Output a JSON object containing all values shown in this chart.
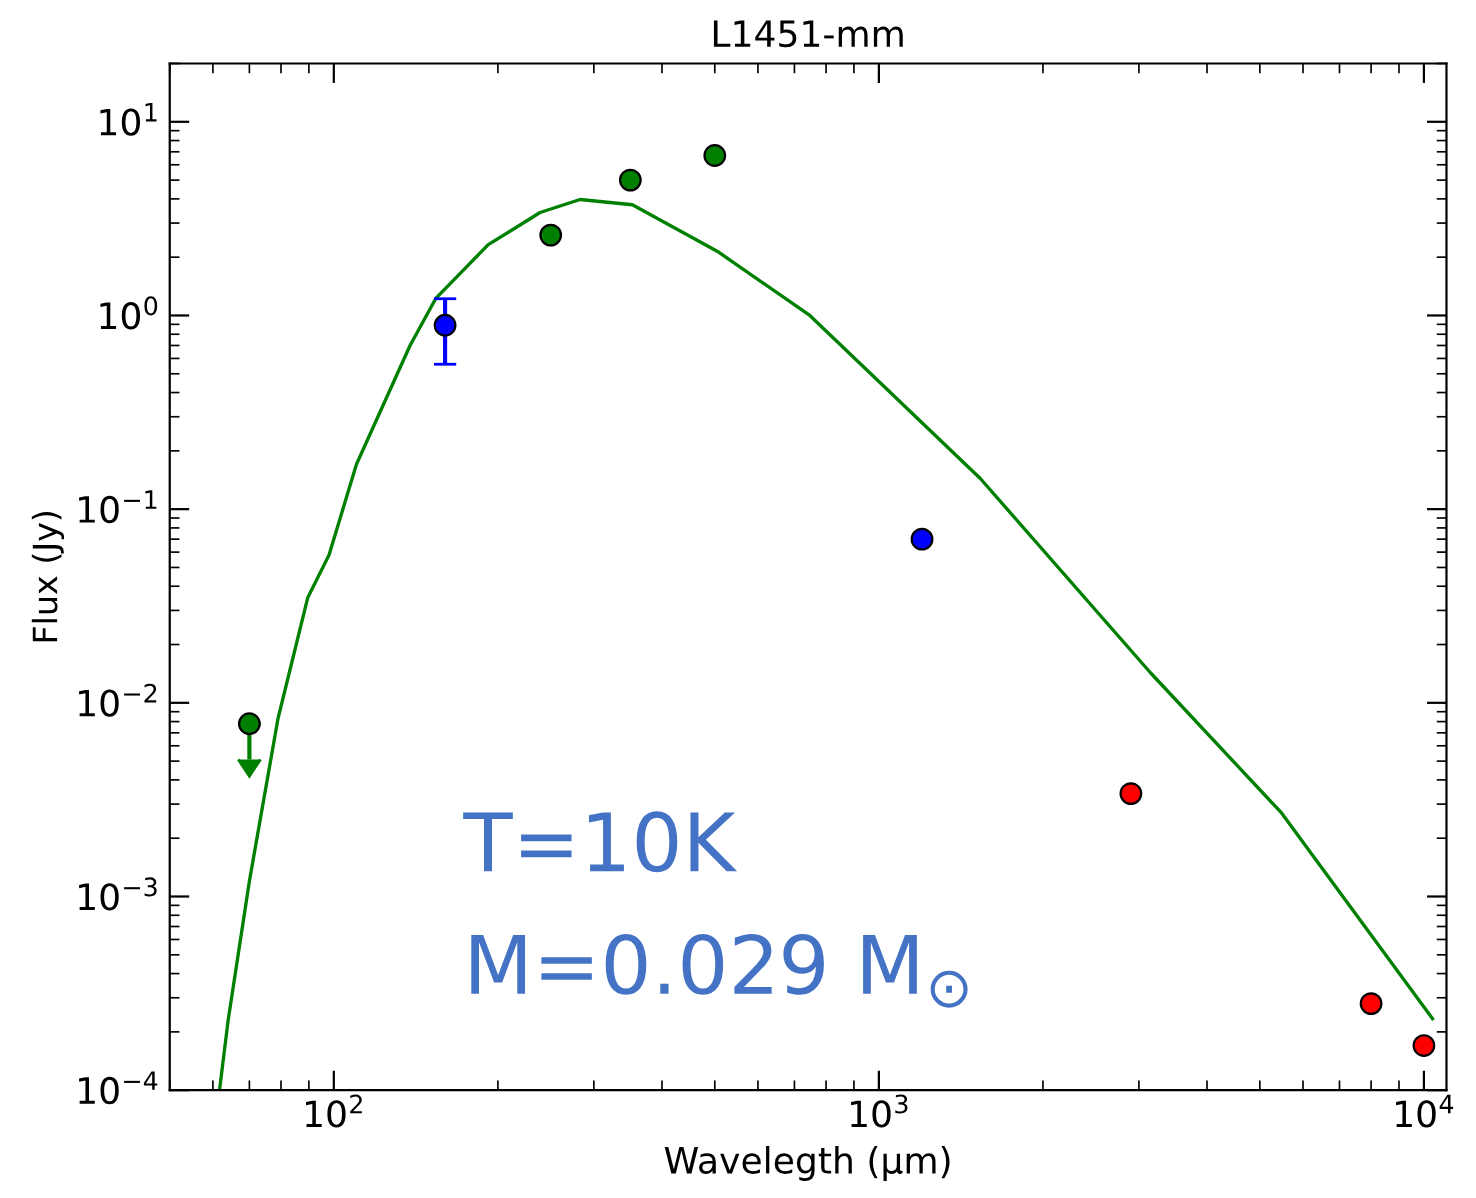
{
  "chart_data": {
    "type": "scatter",
    "title": "L1451-mm",
    "xlabel": "Wavelegth (μm)",
    "ylabel": "Flux (Jy)",
    "log": "xy",
    "grid": false,
    "marker": "circle",
    "xlim": [
      50,
      11000
    ],
    "ylim": [
      0.0001,
      20
    ],
    "xticks": [
      {
        "value": 100,
        "label": "10$^{2}$"
      },
      {
        "value": 1000,
        "label": "10$^{3}$"
      },
      {
        "value": 10000,
        "label": "10$^{4}$"
      }
    ],
    "yticks": [
      {
        "value": 0.0001,
        "label": "10$^{−4}$"
      },
      {
        "value": 0.001,
        "label": "10$^{−3}$"
      },
      {
        "value": 0.01,
        "label": "10$^{−2}$"
      },
      {
        "value": 0.1,
        "label": "10$^{−1}$"
      },
      {
        "value": 1,
        "label": "10$^{0}$"
      },
      {
        "value": 10,
        "label": "10$^{1}$"
      }
    ],
    "series": [
      {
        "type": "line",
        "color": "#008000",
        "marker": "none",
        "x": [
          61.7,
          64,
          70,
          79,
          89.6,
          98,
          110,
          138,
          154,
          192,
          239,
          283,
          353,
          506,
          747,
          1535,
          3150,
          5480,
          10370
        ],
        "values": [
          0.0001,
          0.00023,
          0.0012,
          0.0083,
          0.035,
          0.058,
          0.17,
          0.7,
          1.23,
          2.32,
          3.4,
          3.97,
          3.73,
          2.14,
          1.0,
          0.144,
          0.0143,
          0.0027,
          0.000234
        ]
      },
      {
        "color": "#007f00",
        "x": [
          70,
          250,
          350,
          500
        ],
        "values": [
          0.0078,
          2.6,
          5.0,
          6.7
        ],
        "errors": [
          [
            0.0051,
            0.0078
          ],
          null,
          null,
          null
        ]
      },
      {
        "color": "#0000ff",
        "x": [
          160,
          1200
        ],
        "values": [
          0.89,
          0.07
        ],
        "errors": [
          [
            0.56,
            1.22
          ],
          null
        ]
      },
      {
        "color": "#ff0000",
        "x": [
          2900,
          8000,
          10000
        ],
        "values": [
          0.0034,
          0.00028,
          0.00017
        ]
      }
    ],
    "annotations": [
      "T=10K",
      "M=0.029 M$_{⊙}$"
    ]
  }
}
